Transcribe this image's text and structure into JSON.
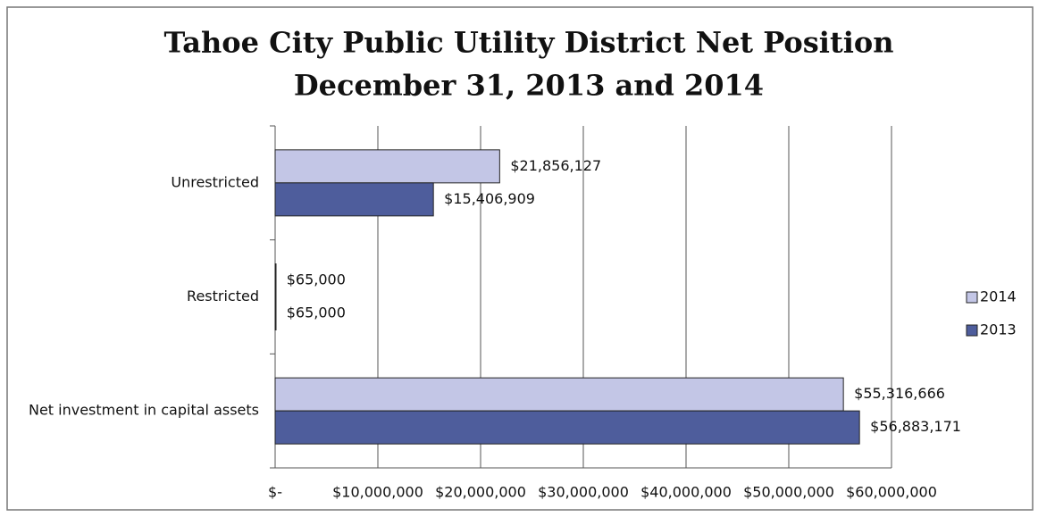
{
  "chart_data": {
    "type": "hbar",
    "title": "Tahoe City Public Utility District Net Position",
    "subtitle": "December 31, 2013 and 2014",
    "categories": [
      "Unrestricted",
      "Restricted",
      "Net investment in capital assets"
    ],
    "series": [
      {
        "name": "2014",
        "color": "#c3c6e6",
        "values": [
          21856127,
          65000,
          55316666
        ],
        "value_labels": [
          "$21,856,127",
          "$65,000",
          "$55,316,666"
        ]
      },
      {
        "name": "2013",
        "color": "#4e5d9c",
        "values": [
          15406909,
          65000,
          56883171
        ],
        "value_labels": [
          "$15,406,909",
          "$65,000",
          "$56,883,171"
        ]
      }
    ],
    "xlim": [
      0,
      60000000
    ],
    "xticks": [
      {
        "value": 0,
        "label": "$-"
      },
      {
        "value": 10000000,
        "label": "$10,000,000"
      },
      {
        "value": 20000000,
        "label": "$20,000,000"
      },
      {
        "value": 30000000,
        "label": "$30,000,000"
      },
      {
        "value": 40000000,
        "label": "$40,000,000"
      },
      {
        "value": 50000000,
        "label": "$50,000,000"
      },
      {
        "value": 60000000,
        "label": "$60,000,000"
      }
    ],
    "grid": true,
    "legend": "right"
  }
}
